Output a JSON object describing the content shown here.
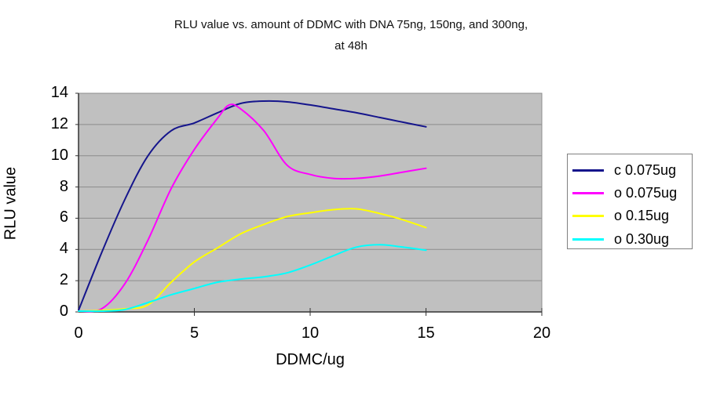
{
  "title": {
    "line1": "RLU value vs. amount of DDMC with DNA 75ng, 150ng, and 300ng,",
    "line2": "at 48h"
  },
  "axes": {
    "y_label": "RLU value",
    "x_label": "DDMC/ug"
  },
  "legend": {
    "items": [
      {
        "label": "c 0.075ug",
        "color": "#15158C"
      },
      {
        "label": "o 0.075ug",
        "color": "#FF00FF"
      },
      {
        "label": "o 0.15ug",
        "color": "#FFFF00"
      },
      {
        "label": "o 0.30ug",
        "color": "#00FFFF"
      }
    ]
  },
  "colors": {
    "plot_background": "#C0C0C0",
    "gridline": "#8C8C8C",
    "axis_line": "#333333",
    "legend_border": "#808080",
    "text": "#000000"
  },
  "chart_data": {
    "type": "line",
    "title": "RLU value vs. amount of DDMC with DNA 75ng, 150ng, and 300ng, at 48h",
    "xlabel": "DDMC/ug",
    "ylabel": "RLU value",
    "xlim": [
      0,
      20
    ],
    "ylim": [
      0,
      14
    ],
    "xticks": [
      0,
      5,
      10,
      15,
      20
    ],
    "yticks": [
      0,
      2,
      4,
      6,
      8,
      10,
      12,
      14
    ],
    "grid": "horizontal",
    "smoothed": true,
    "legend_position": "right",
    "series": [
      {
        "name": "c 0.075ug",
        "color": "#15158C",
        "points": [
          [
            0,
            0.1
          ],
          [
            1,
            3.8
          ],
          [
            2,
            7.2
          ],
          [
            3,
            10.0
          ],
          [
            4,
            11.6
          ],
          [
            5,
            12.1
          ],
          [
            6,
            12.75
          ],
          [
            7,
            13.35
          ],
          [
            8,
            13.5
          ],
          [
            9,
            13.45
          ],
          [
            10,
            13.25
          ],
          [
            11,
            13.0
          ],
          [
            12,
            12.75
          ],
          [
            13,
            12.45
          ],
          [
            14,
            12.15
          ],
          [
            15,
            11.85
          ]
        ]
      },
      {
        "name": "o 0.075ug",
        "color": "#FF00FF",
        "points": [
          [
            0,
            0.05
          ],
          [
            1,
            0.2
          ],
          [
            2,
            1.8
          ],
          [
            3,
            4.6
          ],
          [
            4,
            7.9
          ],
          [
            5,
            10.4
          ],
          [
            6,
            12.4
          ],
          [
            6.5,
            13.25
          ],
          [
            7,
            13.0
          ],
          [
            8,
            11.6
          ],
          [
            9,
            9.4
          ],
          [
            10,
            8.8
          ],
          [
            11,
            8.55
          ],
          [
            12,
            8.55
          ],
          [
            13,
            8.7
          ],
          [
            14,
            8.95
          ],
          [
            15,
            9.2
          ]
        ]
      },
      {
        "name": "o 0.15ug",
        "color": "#FFFF00",
        "points": [
          [
            0,
            0.05
          ],
          [
            1,
            0.1
          ],
          [
            2,
            0.2
          ],
          [
            3,
            0.45
          ],
          [
            4,
            1.9
          ],
          [
            5,
            3.2
          ],
          [
            6,
            4.1
          ],
          [
            7,
            5.0
          ],
          [
            8,
            5.6
          ],
          [
            9,
            6.1
          ],
          [
            10,
            6.35
          ],
          [
            11,
            6.55
          ],
          [
            12,
            6.6
          ],
          [
            13,
            6.3
          ],
          [
            14,
            5.9
          ],
          [
            15,
            5.4
          ]
        ]
      },
      {
        "name": "o 0.30ug",
        "color": "#00FFFF",
        "points": [
          [
            0,
            0.05
          ],
          [
            1,
            0.05
          ],
          [
            2,
            0.15
          ],
          [
            3,
            0.6
          ],
          [
            4,
            1.1
          ],
          [
            5,
            1.5
          ],
          [
            6,
            1.9
          ],
          [
            7,
            2.1
          ],
          [
            8,
            2.25
          ],
          [
            9,
            2.5
          ],
          [
            10,
            3.0
          ],
          [
            11,
            3.6
          ],
          [
            12,
            4.15
          ],
          [
            13,
            4.3
          ],
          [
            14,
            4.15
          ],
          [
            15,
            3.95
          ]
        ]
      }
    ]
  }
}
